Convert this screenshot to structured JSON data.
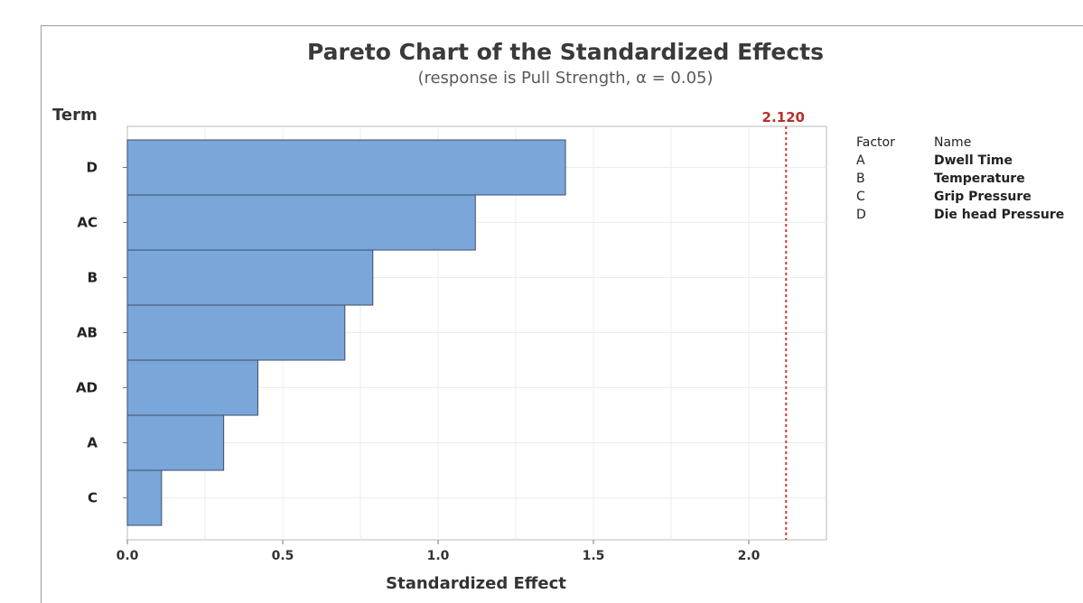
{
  "chart_data": {
    "type": "bar",
    "orientation": "horizontal",
    "title": "Pareto Chart of the Standardized Effects",
    "subtitle": "(response is Pull Strength, α = 0.05)",
    "xlabel": "Standardized Effect",
    "ylabel": "Term",
    "categories": [
      "D",
      "AC",
      "B",
      "AB",
      "AD",
      "A",
      "C"
    ],
    "values": [
      1.41,
      1.12,
      0.79,
      0.7,
      0.42,
      0.31,
      0.11
    ],
    "xlim": [
      0,
      2.25
    ],
    "xticks": [
      0.0,
      0.5,
      1.0,
      1.5,
      2.0
    ],
    "xtick_labels": [
      "0.0",
      "0.5",
      "1.0",
      "1.5",
      "2.0"
    ],
    "reference_line": {
      "value": 2.12,
      "label": "2.120",
      "color": "#d23a36",
      "style": "dashed"
    },
    "bar_color": "#7aa6da",
    "bar_edge_color": "#3a4f6a",
    "grid": true,
    "legend_position": "right",
    "legend": {
      "headers": [
        "Factor",
        "Name"
      ],
      "rows": [
        {
          "factor": "A",
          "name": "Dwell Time"
        },
        {
          "factor": "B",
          "name": "Temperature"
        },
        {
          "factor": "C",
          "name": "Grip Pressure"
        },
        {
          "factor": "D",
          "name": "Die head Pressure"
        }
      ]
    }
  }
}
